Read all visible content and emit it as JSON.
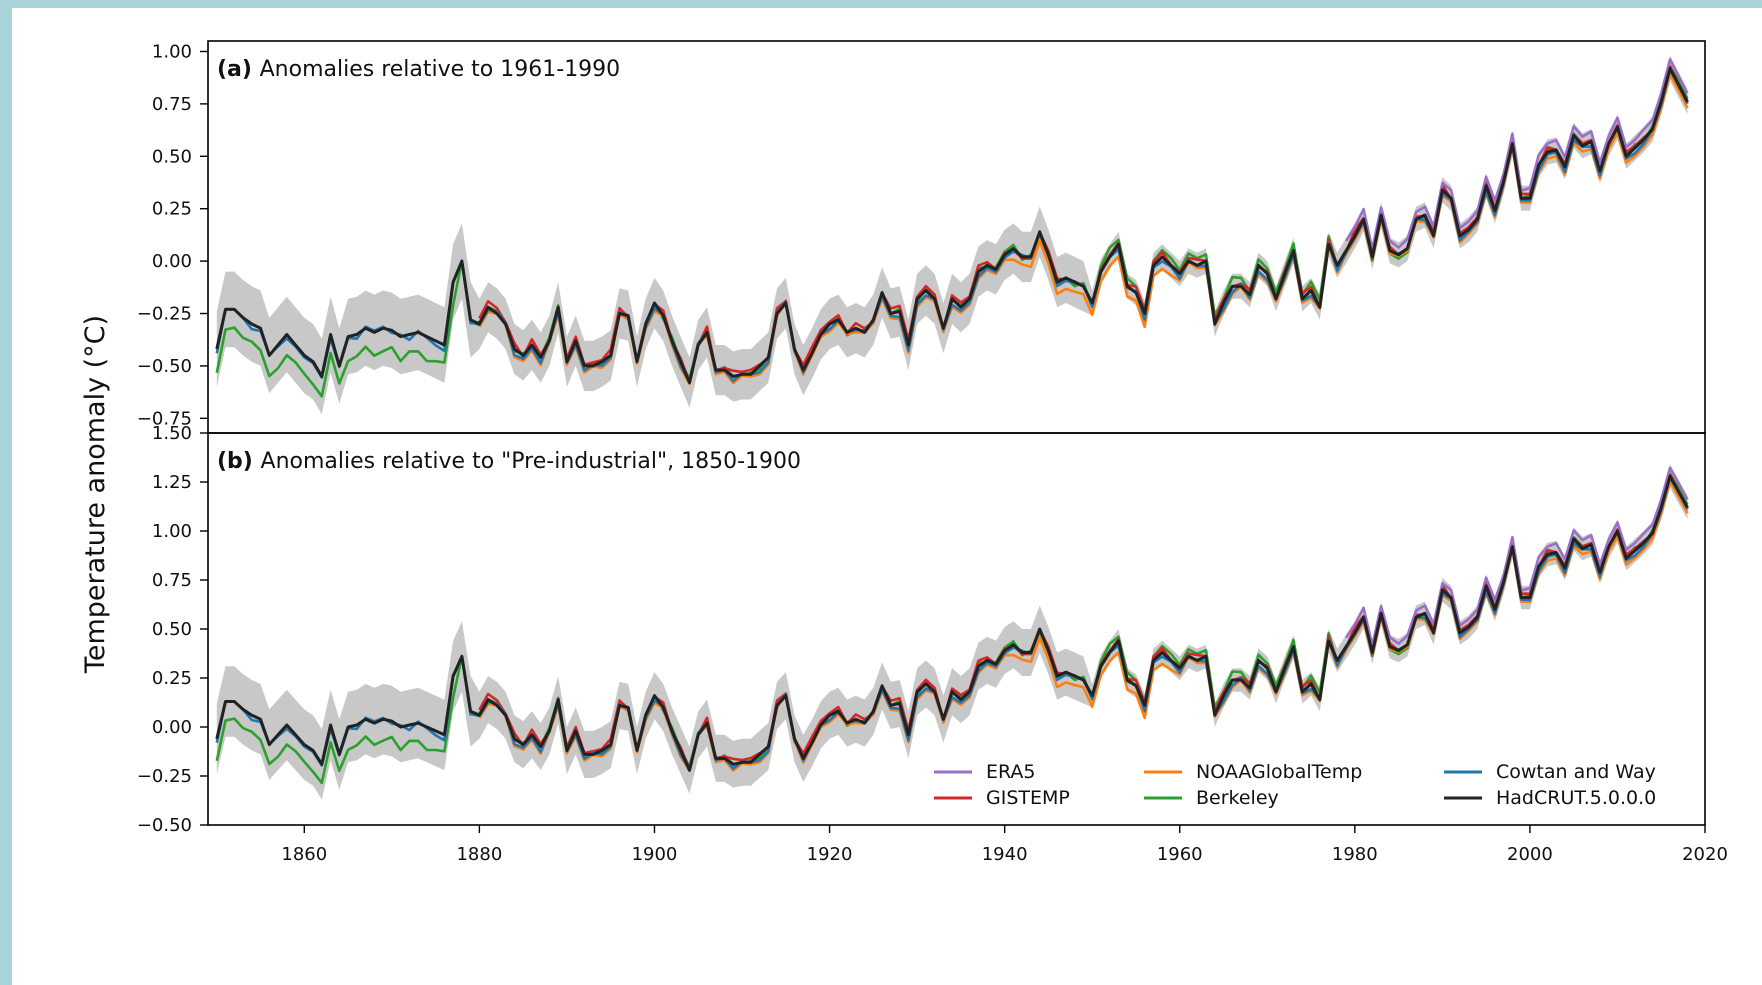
{
  "chart_data": {
    "type": "line",
    "ylabel": "Temperature anomaly (°C)",
    "xlim": [
      1849,
      2020
    ],
    "x_ticks": [
      1860,
      1880,
      1900,
      1920,
      1940,
      1960,
      1980,
      2000,
      2020
    ],
    "legend": {
      "placement": "lower-right",
      "columns": 3
    },
    "series_colors": {
      "ERA5": "#9b6fc9",
      "GISTEMP": "#d62728",
      "NOAAGlobalTemp": "#ff7f0e",
      "Berkeley": "#2ca02c",
      "Cowtan and Way": "#1f77b4",
      "HadCRUT.5.0.0.0": "#222222"
    },
    "legend_entries": [
      "ERA5",
      "NOAAGlobalTemp",
      "Cowtan and Way",
      "GISTEMP",
      "Berkeley",
      "HadCRUT.5.0.0.0"
    ],
    "uncertainty_band_color": "#c8c8c8",
    "panels": [
      {
        "label": "(a)",
        "title": "Anomalies relative to 1961-1990",
        "ylim": [
          -0.82,
          1.05
        ],
        "y_ticks": [
          1.0,
          0.75,
          0.5,
          0.25,
          0.0,
          -0.25,
          -0.5,
          -0.75
        ],
        "y_tick_labels": [
          "1.00",
          "0.75",
          "0.50",
          "0.25",
          "0.00",
          "−0.25",
          "−0.50",
          "−0.75"
        ],
        "baseline_shift": 0.0
      },
      {
        "label": "(b)",
        "title": "Anomalies relative to \"Pre-industrial\", 1850-1900",
        "ylim": [
          -0.5,
          1.5
        ],
        "y_ticks": [
          1.5,
          1.25,
          1.0,
          0.75,
          0.5,
          0.25,
          0.0,
          -0.25,
          -0.5
        ],
        "y_tick_labels": [
          "1.50",
          "1.25",
          "1.00",
          "0.75",
          "0.50",
          "0.25",
          "0.00",
          "−0.25",
          "−0.50"
        ],
        "baseline_shift": 0.36
      }
    ],
    "hadcrut_key_points": [
      [
        1850,
        -0.42
      ],
      [
        1851,
        -0.23
      ],
      [
        1852,
        -0.23
      ],
      [
        1853,
        -0.27
      ],
      [
        1854,
        -0.3
      ],
      [
        1855,
        -0.32
      ],
      [
        1856,
        -0.45
      ],
      [
        1857,
        -0.4
      ],
      [
        1858,
        -0.35
      ],
      [
        1859,
        -0.4
      ],
      [
        1860,
        -0.45
      ],
      [
        1861,
        -0.48
      ],
      [
        1862,
        -0.55
      ],
      [
        1863,
        -0.35
      ],
      [
        1864,
        -0.5
      ],
      [
        1865,
        -0.36
      ],
      [
        1866,
        -0.35
      ],
      [
        1867,
        -0.32
      ],
      [
        1868,
        -0.34
      ],
      [
        1869,
        -0.32
      ],
      [
        1870,
        -0.33
      ],
      [
        1871,
        -0.36
      ],
      [
        1872,
        -0.35
      ],
      [
        1873,
        -0.34
      ],
      [
        1874,
        -0.36
      ],
      [
        1875,
        -0.38
      ],
      [
        1876,
        -0.4
      ],
      [
        1877,
        -0.1
      ],
      [
        1878,
        0.0
      ],
      [
        1879,
        -0.28
      ],
      [
        1880,
        -0.3
      ],
      [
        1881,
        -0.22
      ],
      [
        1882,
        -0.25
      ],
      [
        1883,
        -0.3
      ],
      [
        1884,
        -0.42
      ],
      [
        1885,
        -0.45
      ],
      [
        1886,
        -0.4
      ],
      [
        1887,
        -0.46
      ],
      [
        1888,
        -0.38
      ],
      [
        1889,
        -0.22
      ],
      [
        1890,
        -0.48
      ],
      [
        1891,
        -0.38
      ],
      [
        1892,
        -0.5
      ],
      [
        1893,
        -0.5
      ],
      [
        1894,
        -0.48
      ],
      [
        1895,
        -0.45
      ],
      [
        1896,
        -0.25
      ],
      [
        1897,
        -0.26
      ],
      [
        1898,
        -0.48
      ],
      [
        1899,
        -0.3
      ],
      [
        1900,
        -0.2
      ],
      [
        1901,
        -0.26
      ],
      [
        1902,
        -0.38
      ],
      [
        1903,
        -0.48
      ],
      [
        1904,
        -0.58
      ],
      [
        1905,
        -0.4
      ],
      [
        1906,
        -0.34
      ],
      [
        1907,
        -0.52
      ],
      [
        1908,
        -0.52
      ],
      [
        1909,
        -0.55
      ],
      [
        1910,
        -0.54
      ],
      [
        1911,
        -0.54
      ],
      [
        1912,
        -0.5
      ],
      [
        1913,
        -0.46
      ],
      [
        1914,
        -0.25
      ],
      [
        1915,
        -0.2
      ],
      [
        1916,
        -0.42
      ],
      [
        1917,
        -0.52
      ],
      [
        1918,
        -0.44
      ],
      [
        1919,
        -0.35
      ],
      [
        1920,
        -0.3
      ],
      [
        1921,
        -0.28
      ],
      [
        1922,
        -0.34
      ],
      [
        1923,
        -0.32
      ],
      [
        1924,
        -0.34
      ],
      [
        1925,
        -0.28
      ],
      [
        1926,
        -0.15
      ],
      [
        1927,
        -0.25
      ],
      [
        1928,
        -0.24
      ],
      [
        1929,
        -0.4
      ],
      [
        1930,
        -0.18
      ],
      [
        1931,
        -0.14
      ],
      [
        1932,
        -0.18
      ],
      [
        1933,
        -0.32
      ],
      [
        1934,
        -0.18
      ],
      [
        1935,
        -0.22
      ],
      [
        1936,
        -0.18
      ],
      [
        1937,
        -0.05
      ],
      [
        1938,
        -0.02
      ],
      [
        1939,
        -0.04
      ],
      [
        1940,
        0.03
      ],
      [
        1941,
        0.06
      ],
      [
        1942,
        0.02
      ],
      [
        1943,
        0.02
      ],
      [
        1944,
        0.14
      ],
      [
        1945,
        0.03
      ],
      [
        1946,
        -0.1
      ],
      [
        1947,
        -0.08
      ],
      [
        1948,
        -0.1
      ],
      [
        1949,
        -0.12
      ],
      [
        1950,
        -0.2
      ],
      [
        1951,
        -0.05
      ],
      [
        1952,
        0.02
      ],
      [
        1953,
        0.08
      ],
      [
        1954,
        -0.12
      ],
      [
        1955,
        -0.15
      ],
      [
        1956,
        -0.25
      ],
      [
        1957,
        -0.02
      ],
      [
        1958,
        0.02
      ],
      [
        1959,
        -0.02
      ],
      [
        1960,
        -0.06
      ],
      [
        1961,
        0.0
      ],
      [
        1962,
        -0.02
      ],
      [
        1963,
        0.0
      ],
      [
        1964,
        -0.3
      ],
      [
        1965,
        -0.2
      ],
      [
        1966,
        -0.12
      ],
      [
        1967,
        -0.12
      ],
      [
        1968,
        -0.16
      ],
      [
        1969,
        -0.02
      ],
      [
        1970,
        -0.06
      ],
      [
        1971,
        -0.18
      ],
      [
        1972,
        -0.06
      ],
      [
        1973,
        0.05
      ],
      [
        1974,
        -0.18
      ],
      [
        1975,
        -0.14
      ],
      [
        1976,
        -0.22
      ],
      [
        1977,
        0.08
      ],
      [
        1978,
        -0.02
      ],
      [
        1979,
        0.05
      ],
      [
        1980,
        0.12
      ],
      [
        1981,
        0.2
      ],
      [
        1982,
        0.02
      ],
      [
        1983,
        0.22
      ],
      [
        1984,
        0.05
      ],
      [
        1985,
        0.03
      ],
      [
        1986,
        0.06
      ],
      [
        1987,
        0.2
      ],
      [
        1988,
        0.22
      ],
      [
        1989,
        0.12
      ],
      [
        1990,
        0.34
      ],
      [
        1991,
        0.3
      ],
      [
        1992,
        0.12
      ],
      [
        1993,
        0.15
      ],
      [
        1994,
        0.2
      ],
      [
        1995,
        0.36
      ],
      [
        1996,
        0.24
      ],
      [
        1997,
        0.38
      ],
      [
        1998,
        0.56
      ],
      [
        1999,
        0.3
      ],
      [
        2000,
        0.3
      ],
      [
        2001,
        0.46
      ],
      [
        2002,
        0.52
      ],
      [
        2003,
        0.53
      ],
      [
        2004,
        0.45
      ],
      [
        2005,
        0.6
      ],
      [
        2006,
        0.55
      ],
      [
        2007,
        0.57
      ],
      [
        2008,
        0.43
      ],
      [
        2009,
        0.56
      ],
      [
        2010,
        0.64
      ],
      [
        2011,
        0.5
      ],
      [
        2012,
        0.54
      ],
      [
        2013,
        0.58
      ],
      [
        2014,
        0.63
      ],
      [
        2015,
        0.76
      ],
      [
        2016,
        0.92
      ],
      [
        2017,
        0.84
      ],
      [
        2018,
        0.76
      ]
    ]
  }
}
